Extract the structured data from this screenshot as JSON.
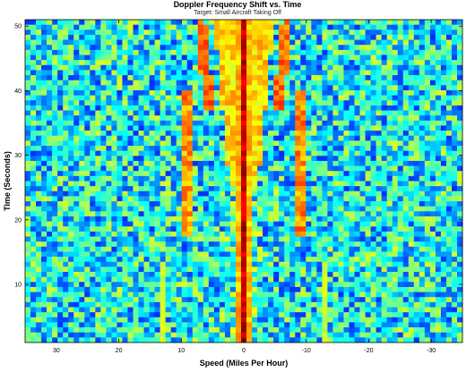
{
  "chart_data": {
    "type": "heatmap",
    "title": "Doppler Frequency Shift vs. Time",
    "subtitle": "Target: Small Aircraft Taking Off",
    "xlabel": "Speed (Miles Per Hour)",
    "ylabel": "Time (Seconds)",
    "xlim": [
      35,
      -35
    ],
    "ylim": [
      1,
      51
    ],
    "x_ticks": [
      30,
      20,
      10,
      0,
      -10,
      -20,
      -30
    ],
    "x_tick_labels": [
      "30",
      "20",
      "10",
      "0",
      "-10",
      "-20",
      "-30"
    ],
    "y_ticks": [
      10,
      20,
      30,
      40,
      50
    ],
    "y_tick_labels": [
      "10",
      "20",
      "30",
      "40",
      "50"
    ],
    "grid": false,
    "colormap": "jet",
    "colors": {
      "background": "#ffffff",
      "axis": "#000000",
      "low": "#00008f",
      "mid": "#3fffbf",
      "high": "#800000"
    },
    "features": {
      "center_line_speed": 0,
      "side_lobe_speeds": [
        5,
        -5
      ]
    }
  }
}
